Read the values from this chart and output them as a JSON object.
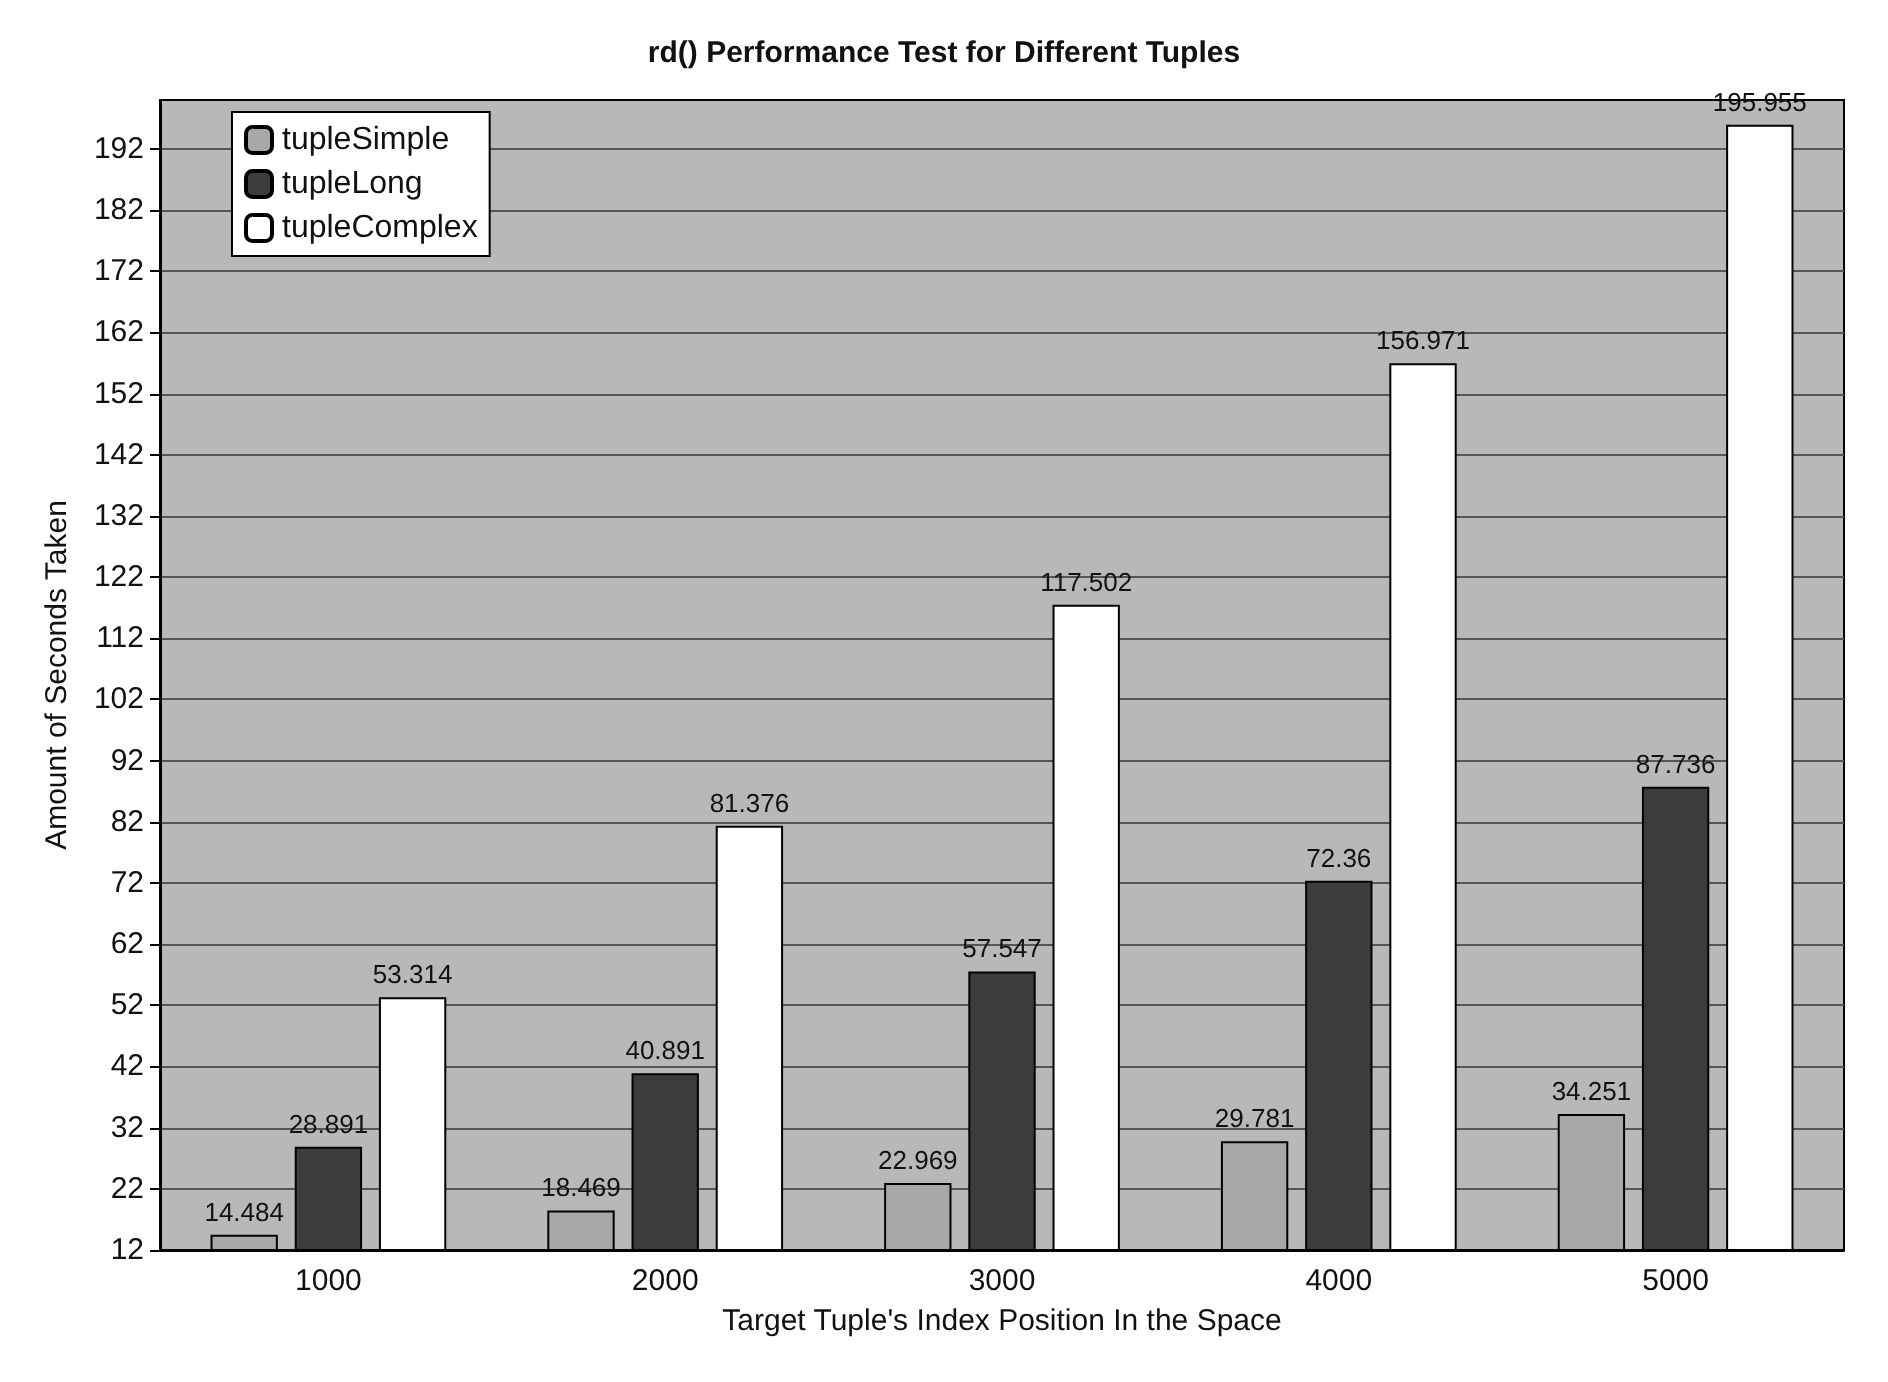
{
  "chart_data": {
    "type": "bar",
    "title": "rd() Performance Test for Different Tuples",
    "xlabel": "Target Tuple's Index Position In the Space",
    "ylabel": "Amount of Seconds Taken",
    "categories": [
      "1000",
      "2000",
      "3000",
      "4000",
      "5000"
    ],
    "series": [
      {
        "name": "tupleSimple",
        "color": "#a8a8a8",
        "values": [
          14.484,
          18.469,
          22.969,
          29.781,
          34.251
        ]
      },
      {
        "name": "tupleLong",
        "color": "#3c3c3c",
        "values": [
          28.891,
          40.891,
          57.547,
          72.36,
          87.736
        ]
      },
      {
        "name": "tupleComplex",
        "color": "#ffffff",
        "values": [
          53.314,
          81.376,
          117.502,
          156.971,
          195.955
        ]
      }
    ],
    "ylim": [
      12,
      200
    ],
    "yticks": [
      12,
      22,
      32,
      42,
      52,
      62,
      72,
      82,
      92,
      102,
      112,
      122,
      132,
      142,
      152,
      162,
      172,
      182,
      192
    ],
    "grid": "y",
    "legend": "top left",
    "data_labels": true
  }
}
